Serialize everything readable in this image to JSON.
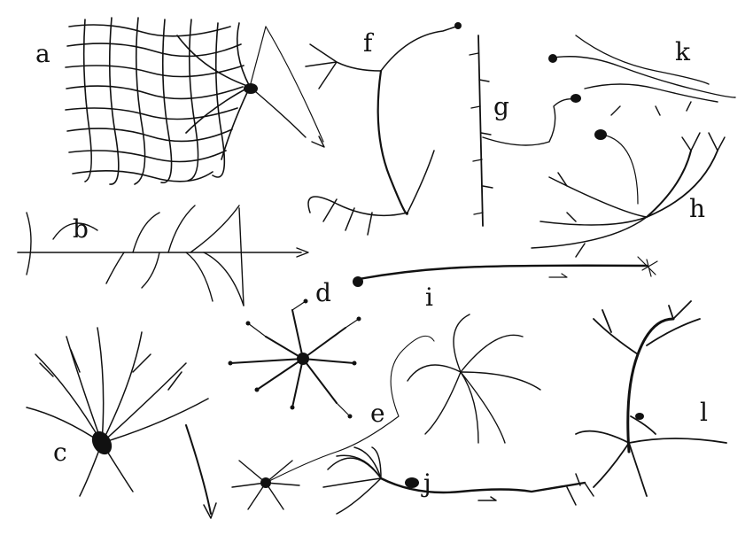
{
  "figure": {
    "ink_color": "#111111",
    "paper_color": "#ffffff",
    "panels": [
      {
        "id": "a",
        "label": "a",
        "subject": "dense dendritic arbor with cell body and descending axon"
      },
      {
        "id": "b",
        "label": "b",
        "subject": "horizontal neuron with long axon and arrow"
      },
      {
        "id": "c",
        "label": "c",
        "subject": "pyramidal-like neuron with radiating dendrites and descending axon arrow"
      },
      {
        "id": "d",
        "label": "d",
        "subject": "star-shaped cell with beaded dendrites"
      },
      {
        "id": "e",
        "label": "e",
        "subject": "bushy cell with long winding axon and second arbor"
      },
      {
        "id": "f",
        "label": "f",
        "subject": "elongated cell with two tufted arbors and small cell body"
      },
      {
        "id": "g",
        "label": "g",
        "subject": "vertical spiny fiber with cell body and axon"
      },
      {
        "id": "h",
        "label": "h",
        "subject": "cell with fan of branching processes"
      },
      {
        "id": "i",
        "label": "i",
        "subject": "long horizontal fiber with terminal tuft and arrow"
      },
      {
        "id": "j",
        "label": "j",
        "subject": "fan-shaped arbor with long axon and terminal branches"
      },
      {
        "id": "k",
        "label": "k",
        "subject": "wide fibrous arbor with cell body"
      },
      {
        "id": "l",
        "label": "l",
        "subject": "cell with large branching dendritic tree"
      }
    ]
  }
}
